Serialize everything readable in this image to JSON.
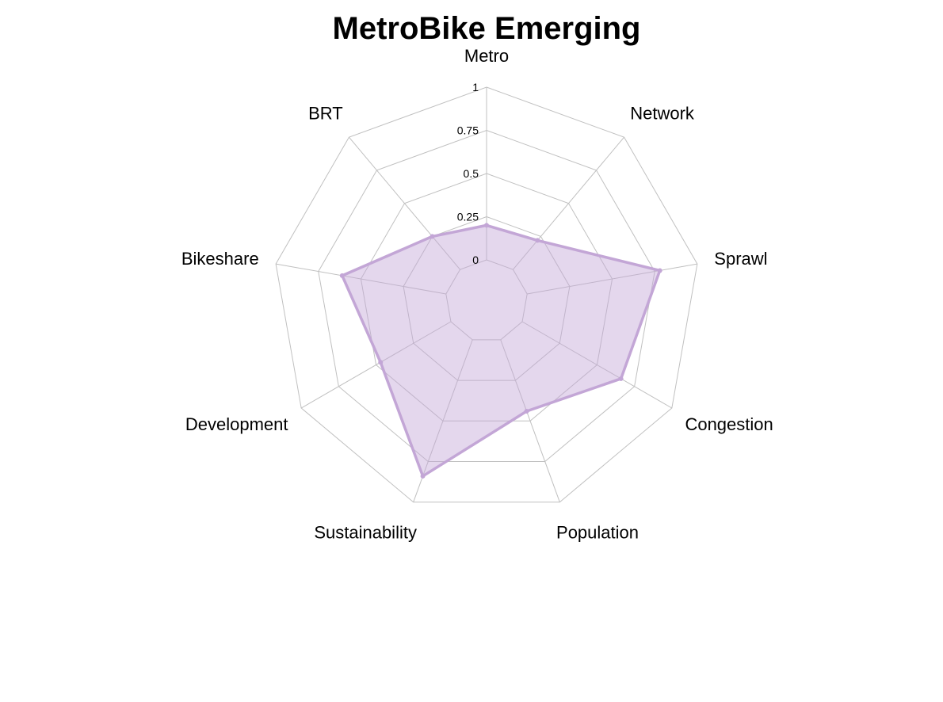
{
  "chart_data": {
    "type": "radar",
    "title": "MetroBike Emerging",
    "axes": [
      "Metro",
      "Network",
      "Sprawl",
      "Congestion",
      "Population",
      "Sustainability",
      "Development",
      "Bikeshare",
      "BRT"
    ],
    "radial_range": [
      0,
      1
    ],
    "radial_ticks": [
      "0",
      "0.25",
      "0.5",
      "0.75",
      "1"
    ],
    "series": [
      {
        "values": [
          0.2,
          0.22,
          0.78,
          0.66,
          0.44,
          0.84,
          0.47,
          0.61,
          0.25
        ],
        "color": "#c3a6d6"
      }
    ],
    "grid": true,
    "grid_shape": "polygon",
    "grid_color": "#c0c0c0"
  }
}
